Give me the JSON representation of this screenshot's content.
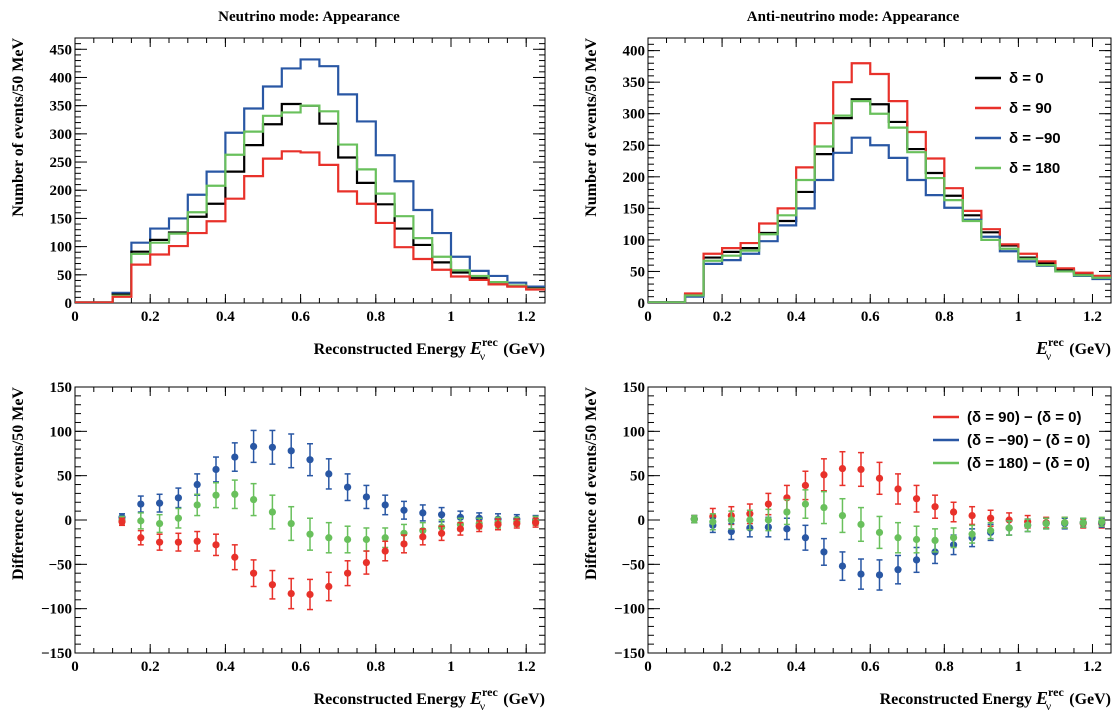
{
  "colors": {
    "black": "#000000",
    "red": "#e8312a",
    "blue": "#2957a4",
    "green": "#69c05c"
  },
  "chart_data": [
    {
      "type": "line",
      "step": true,
      "title": "Neutrino mode: Appearance",
      "xlabel": "Reconstructed Energy E_ν^rec (GeV)",
      "ylabel": "Number of events/50 MeV",
      "xlim": [
        0,
        1.25
      ],
      "ylim": [
        0,
        470
      ],
      "xticks": [
        0,
        0.2,
        0.4,
        0.6,
        0.8,
        1,
        1.2
      ],
      "yticks": [
        0,
        50,
        100,
        150,
        200,
        250,
        300,
        350,
        400,
        450
      ],
      "bin_edges": [
        0,
        0.05,
        0.1,
        0.15,
        0.2,
        0.25,
        0.3,
        0.35,
        0.4,
        0.45,
        0.5,
        0.55,
        0.6,
        0.65,
        0.7,
        0.75,
        0.8,
        0.85,
        0.9,
        0.95,
        1.0,
        1.05,
        1.1,
        1.15,
        1.2,
        1.25
      ],
      "legend": "none",
      "series": [
        {
          "color": "blue",
          "values": [
            1,
            1,
            18,
            107,
            132,
            150,
            192,
            233,
            302,
            345,
            384,
            416,
            432,
            420,
            370,
            322,
            262,
            216,
            165,
            124,
            82,
            57,
            48,
            36,
            29
          ]
        },
        {
          "color": "black",
          "values": [
            1,
            1,
            15,
            91,
            112,
            125,
            153,
            176,
            233,
            280,
            317,
            353,
            350,
            318,
            258,
            213,
            175,
            132,
            103,
            72,
            54,
            44,
            37,
            30,
            26
          ]
        },
        {
          "color": "green",
          "values": [
            1,
            1,
            13,
            87,
            107,
            123,
            161,
            208,
            263,
            304,
            332,
            338,
            350,
            340,
            281,
            237,
            194,
            154,
            115,
            82,
            58,
            48,
            37,
            31,
            25
          ]
        },
        {
          "color": "red",
          "values": [
            1,
            1,
            11,
            68,
            86,
            101,
            124,
            145,
            185,
            225,
            256,
            269,
            267,
            245,
            198,
            176,
            142,
            99,
            78,
            59,
            47,
            41,
            33,
            29,
            24
          ]
        }
      ]
    },
    {
      "type": "line",
      "step": true,
      "title": "Anti-neutrino mode: Appearance",
      "xlabel": "E_ν^rec (GeV)",
      "ylabel": "Number of events/50 MeV",
      "xlim": [
        0,
        1.25
      ],
      "ylim": [
        0,
        420
      ],
      "xticks": [
        0,
        0.2,
        0.4,
        0.6,
        0.8,
        1,
        1.2
      ],
      "yticks": [
        0,
        50,
        100,
        150,
        200,
        250,
        300,
        350,
        400
      ],
      "bin_edges": [
        0,
        0.05,
        0.1,
        0.15,
        0.2,
        0.25,
        0.3,
        0.35,
        0.4,
        0.45,
        0.5,
        0.55,
        0.6,
        0.65,
        0.7,
        0.75,
        0.8,
        0.85,
        0.9,
        0.95,
        1.0,
        1.05,
        1.1,
        1.15,
        1.2,
        1.25
      ],
      "legend": "top-right",
      "series": [
        {
          "name": "δ = 0",
          "color": "black",
          "values": [
            1,
            1,
            13,
            72,
            81,
            87,
            111,
            130,
            176,
            236,
            293,
            323,
            315,
            287,
            244,
            206,
            170,
            139,
            112,
            91,
            72,
            63,
            53,
            47,
            42
          ]
        },
        {
          "name": "δ = 90",
          "color": "red",
          "values": [
            1,
            1,
            15,
            78,
            87,
            95,
            126,
            150,
            215,
            285,
            350,
            380,
            363,
            320,
            271,
            229,
            182,
            146,
            117,
            93,
            78,
            66,
            55,
            48,
            43
          ]
        },
        {
          "name": "δ = −90",
          "color": "blue",
          "values": [
            1,
            1,
            10,
            62,
            68,
            78,
            98,
            123,
            150,
            195,
            238,
            262,
            250,
            230,
            195,
            171,
            151,
            132,
            105,
            82,
            66,
            59,
            50,
            43,
            38
          ]
        },
        {
          "name": "δ = 180",
          "color": "green",
          "values": [
            1,
            1,
            12,
            67,
            75,
            83,
            109,
            139,
            195,
            248,
            297,
            320,
            300,
            278,
            239,
            198,
            163,
            130,
            100,
            86,
            70,
            60,
            50,
            44,
            40
          ]
        }
      ]
    },
    {
      "type": "scatter",
      "errorbars": true,
      "xlabel": "Reconstructed Energy E_ν^rec (GeV)",
      "ylabel": "Difference of events/50 MeV",
      "xlim": [
        0,
        1.25
      ],
      "ylim": [
        -150,
        150
      ],
      "xticks": [
        0,
        0.2,
        0.4,
        0.6,
        0.8,
        1,
        1.2
      ],
      "yticks": [
        -150,
        -100,
        -50,
        0,
        50,
        100,
        150
      ],
      "legend": "none",
      "x": [
        0.125,
        0.175,
        0.225,
        0.275,
        0.325,
        0.375,
        0.425,
        0.475,
        0.525,
        0.575,
        0.625,
        0.675,
        0.725,
        0.775,
        0.825,
        0.875,
        0.925,
        0.975,
        1.025,
        1.075,
        1.125,
        1.175,
        1.225
      ],
      "series": [
        {
          "color": "blue",
          "values": [
            3,
            18,
            19,
            25,
            40,
            57,
            71,
            83,
            82,
            78,
            68,
            52,
            37,
            26,
            17,
            11,
            8,
            6,
            3,
            2,
            1,
            1,
            0
          ],
          "errors": [
            4,
            9,
            10,
            11,
            12,
            14,
            16,
            18,
            19,
            19,
            18,
            17,
            15,
            13,
            11,
            10,
            9,
            8,
            7,
            6,
            6,
            5,
            5
          ]
        },
        {
          "color": "green",
          "values": [
            0,
            -1,
            -4,
            2,
            17,
            28,
            29,
            23,
            9,
            -4,
            -16,
            -20,
            -22,
            -22,
            -20,
            -15,
            -12,
            -8,
            -5,
            -4,
            -3,
            -2,
            -1
          ],
          "errors": [
            4,
            9,
            10,
            11,
            12,
            14,
            16,
            18,
            19,
            19,
            18,
            17,
            15,
            13,
            11,
            10,
            9,
            8,
            7,
            6,
            6,
            5,
            5
          ]
        },
        {
          "color": "red",
          "values": [
            -2,
            -20,
            -25,
            -25,
            -24,
            -28,
            -42,
            -60,
            -73,
            -83,
            -84,
            -75,
            -60,
            -48,
            -35,
            -27,
            -19,
            -15,
            -10,
            -7,
            -5,
            -4,
            -3
          ],
          "errors": [
            4,
            8,
            9,
            10,
            11,
            12,
            14,
            15,
            16,
            17,
            17,
            16,
            14,
            13,
            11,
            10,
            9,
            8,
            7,
            6,
            6,
            5,
            5
          ]
        }
      ]
    },
    {
      "type": "scatter",
      "errorbars": true,
      "xlabel": "Reconstructed Energy E_ν^rec (GeV)",
      "ylabel": "Difference of events/50 MeV",
      "xlim": [
        0,
        1.25
      ],
      "ylim": [
        -150,
        150
      ],
      "xticks": [
        0,
        0.2,
        0.4,
        0.6,
        0.8,
        1,
        1.2
      ],
      "yticks": [
        -150,
        -100,
        -50,
        0,
        50,
        100,
        150
      ],
      "legend": "top-right",
      "x": [
        0.125,
        0.175,
        0.225,
        0.275,
        0.325,
        0.375,
        0.425,
        0.475,
        0.525,
        0.575,
        0.625,
        0.675,
        0.725,
        0.775,
        0.825,
        0.875,
        0.925,
        0.975,
        1.025,
        1.075,
        1.125,
        1.175,
        1.225
      ],
      "series": [
        {
          "name": "(δ = 90) − (δ = 0)",
          "color": "red",
          "values": [
            1,
            4,
            5,
            7,
            18,
            25,
            39,
            51,
            58,
            57,
            47,
            35,
            24,
            15,
            9,
            5,
            2,
            0,
            -2,
            -3,
            -3,
            -4,
            -4
          ],
          "errors": [
            4,
            9,
            10,
            11,
            12,
            14,
            16,
            18,
            19,
            19,
            18,
            17,
            15,
            13,
            11,
            10,
            9,
            8,
            7,
            6,
            6,
            5,
            5
          ]
        },
        {
          "name": "(δ = −90) − (δ = 0)",
          "color": "blue",
          "values": [
            1,
            -6,
            -13,
            -9,
            -8,
            -10,
            -20,
            -36,
            -52,
            -61,
            -62,
            -56,
            -45,
            -36,
            -28,
            -20,
            -14,
            -9,
            -6,
            -4,
            -4,
            -3,
            -3
          ],
          "errors": [
            4,
            8,
            9,
            10,
            11,
            12,
            14,
            15,
            16,
            17,
            17,
            16,
            14,
            13,
            11,
            10,
            9,
            8,
            7,
            6,
            6,
            5,
            5
          ]
        },
        {
          "name": "(δ = 180) − (δ = 0)",
          "color": "green",
          "values": [
            1,
            -2,
            0,
            0,
            0,
            9,
            18,
            14,
            5,
            -5,
            -14,
            -20,
            -22,
            -23,
            -20,
            -16,
            -12,
            -9,
            -6,
            -4,
            -3,
            -3,
            -2
          ],
          "errors": [
            4,
            9,
            10,
            11,
            12,
            14,
            16,
            18,
            19,
            19,
            18,
            17,
            15,
            13,
            11,
            10,
            9,
            8,
            7,
            6,
            6,
            5,
            5
          ]
        }
      ]
    }
  ]
}
